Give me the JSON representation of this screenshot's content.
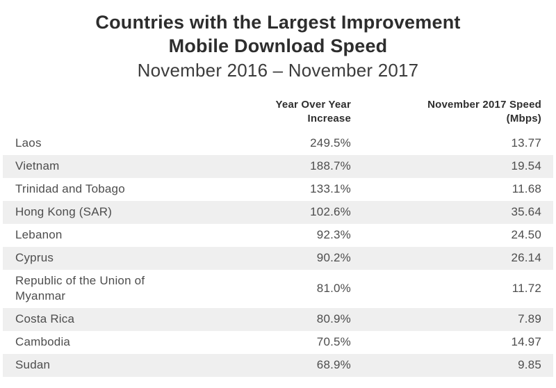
{
  "title": {
    "line1": "Countries with the Largest Improvement",
    "line2": "Mobile Download Speed",
    "line3": "November 2016 – November 2017"
  },
  "table": {
    "header": {
      "col2": [
        "Year Over Year",
        "Increase"
      ],
      "col3": [
        "November 2017 Speed",
        "(Mbps)"
      ]
    },
    "rows": [
      {
        "country": "Laos",
        "yoy_increase": "249.5%",
        "speed": "13.77"
      },
      {
        "country": "Vietnam",
        "yoy_increase": "188.7%",
        "speed": "19.54"
      },
      {
        "country": "Trinidad and Tobago",
        "yoy_increase": "133.1%",
        "speed": "11.68"
      },
      {
        "country": "Hong Kong (SAR)",
        "yoy_increase": "102.6%",
        "speed": "35.64"
      },
      {
        "country": "Lebanon",
        "yoy_increase": "92.3%",
        "speed": "24.50"
      },
      {
        "country": "Cyprus",
        "yoy_increase": "90.2%",
        "speed": "26.14"
      },
      {
        "country": "Republic of the Union of Myanmar",
        "yoy_increase": "81.0%",
        "speed": "11.72"
      },
      {
        "country": "Costa Rica",
        "yoy_increase": "80.9%",
        "speed": "7.89"
      },
      {
        "country": "Cambodia",
        "yoy_increase": "70.5%",
        "speed": "14.97"
      },
      {
        "country": "Sudan",
        "yoy_increase": "68.9%",
        "speed": "9.85"
      }
    ]
  },
  "colors": {
    "stripe": "#efefef",
    "title_text": "#2d2d2d",
    "body_text": "#4d4d4d"
  },
  "chart_data": {
    "type": "table",
    "title": "Countries with the Largest Improvement Mobile Download Speed",
    "subtitle": "November 2016 – November 2017",
    "columns": [
      "Country",
      "Year Over Year Increase",
      "November 2017 Speed (Mbps)"
    ],
    "categories": [
      "Laos",
      "Vietnam",
      "Trinidad and Tobago",
      "Hong Kong (SAR)",
      "Lebanon",
      "Cyprus",
      "Republic of the Union of Myanmar",
      "Costa Rica",
      "Cambodia",
      "Sudan"
    ],
    "series": [
      {
        "name": "Year Over Year Increase (%)",
        "values": [
          249.5,
          188.7,
          133.1,
          102.6,
          92.3,
          90.2,
          81.0,
          80.9,
          70.5,
          68.9
        ]
      },
      {
        "name": "November 2017 Speed (Mbps)",
        "values": [
          13.77,
          19.54,
          11.68,
          35.64,
          24.5,
          26.14,
          11.72,
          7.89,
          14.97,
          9.85
        ]
      }
    ],
    "layout": {
      "striped_rows": true,
      "numeric_columns_alignment": "right",
      "grid": false
    }
  }
}
